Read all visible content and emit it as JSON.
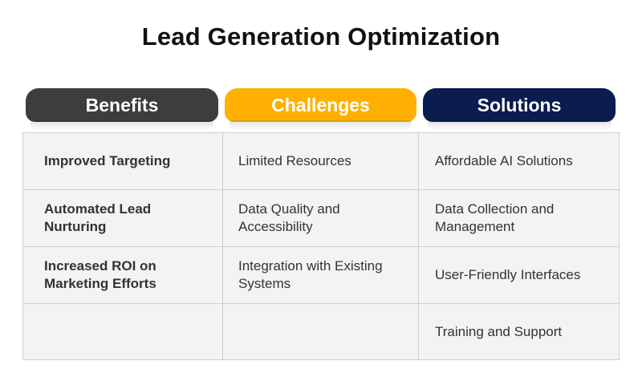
{
  "title": "Lead Generation Optimization",
  "headers": {
    "benefits": "Benefits",
    "challenges": "Challenges",
    "solutions": "Solutions"
  },
  "colors": {
    "benefits_header": "#3d3d3d",
    "challenges_header": "#ffb000",
    "solutions_header": "#0b1c4f",
    "table_background": "#f3f3f3",
    "grid_lines": "#cfcfcf"
  },
  "rows": [
    {
      "benefit": "Improved Targeting",
      "challenge": "Limited Resources",
      "solution": "Affordable AI Solutions"
    },
    {
      "benefit": "Automated Lead Nurturing",
      "challenge": "Data Quality and Accessibility",
      "solution": "Data Collection and Management"
    },
    {
      "benefit": "Increased ROI on Marketing Efforts",
      "challenge": "Integration with Existing Systems",
      "solution": "User-Friendly Interfaces"
    },
    {
      "benefit": "",
      "challenge": "",
      "solution": "Training and Support"
    }
  ]
}
